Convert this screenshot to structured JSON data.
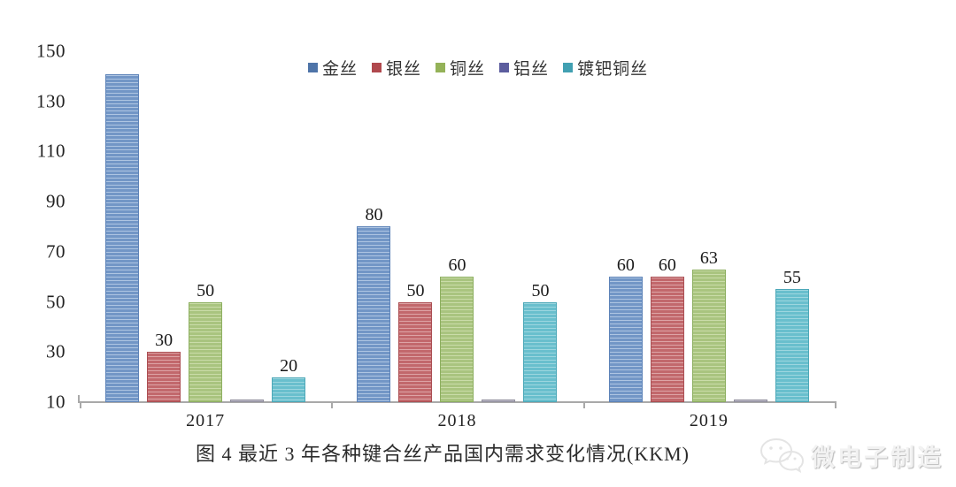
{
  "chart_data": {
    "type": "bar",
    "title": "图 4 最近 3 年各种键合丝产品国内需求变化情况(KKM)",
    "categories": [
      "2017",
      "2018",
      "2019"
    ],
    "series": [
      {
        "name": "金丝",
        "values": [
          141,
          80,
          60
        ],
        "labels": [
          "",
          "80",
          "60"
        ],
        "color": "#7296c6",
        "stripe_color": "#aec5e2",
        "border_color": "#5d83b8",
        "marker_color": "#4e74a8"
      },
      {
        "name": "银丝",
        "values": [
          30,
          50,
          60
        ],
        "labels": [
          "30",
          "50",
          "60"
        ],
        "color": "#c2686c",
        "stripe_color": "#dda4a6",
        "border_color": "#ab4e52",
        "marker_color": "#b0484d"
      },
      {
        "name": "铜丝",
        "values": [
          50,
          60,
          63
        ],
        "labels": [
          "50",
          "60",
          "63"
        ],
        "color": "#a9c47f",
        "stripe_color": "#cadca9",
        "border_color": "#8daf60",
        "marker_color": "#94b258"
      },
      {
        "name": "铝丝",
        "values": [
          11,
          11,
          11
        ],
        "labels": [
          "",
          "",
          ""
        ],
        "color": "#a6a4b2",
        "stripe_color": "#bab8c6",
        "border_color": "#918f9d",
        "marker_color": "#5c5d9e"
      },
      {
        "name": "镀钯铜丝",
        "values": [
          20,
          50,
          55
        ],
        "labels": [
          "20",
          "50",
          "55"
        ],
        "color": "#69bfcd",
        "stripe_color": "#9dd6df",
        "border_color": "#4da8b8",
        "marker_color": "#41a0b2"
      }
    ],
    "ylim": [
      10,
      150
    ],
    "yticks": [
      10,
      30,
      50,
      70,
      90,
      110,
      130,
      150
    ],
    "grid": false,
    "legend_position": "top",
    "axis_color": "#a9a9a9"
  },
  "watermark": {
    "text": "微电子制造",
    "icon": "wechat-chat-bubbles-icon"
  }
}
